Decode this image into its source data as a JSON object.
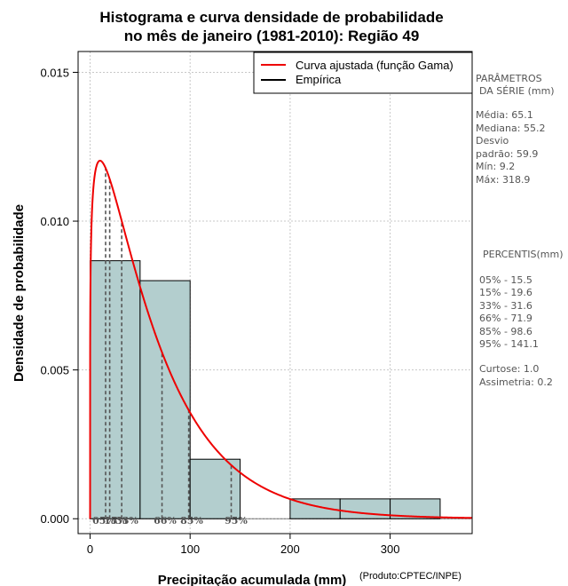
{
  "chart_data": {
    "type": "histogram",
    "title": "Histograma e curva densidade de probabilidade",
    "subtitle": "no mês de janeiro (1981-2010): Região 49",
    "xlabel": "Precipitação acumulada (mm)",
    "ylabel": "Densidade de probabilidade",
    "credit": "(Produto:CPTEC/INPE)",
    "xlim": [
      -12,
      382
    ],
    "ylim": [
      -0.0005,
      0.0157
    ],
    "x_ticks": [
      0,
      100,
      200,
      300
    ],
    "x_tick_labels": [
      "0",
      "100",
      "200",
      "300"
    ],
    "y_ticks": [
      0.0,
      0.005,
      0.01,
      0.015
    ],
    "y_tick_labels": [
      "0.000",
      "0.005",
      "0.010",
      "0.015"
    ],
    "grid": true,
    "bins": [
      {
        "start": 0,
        "end": 50,
        "density": 0.00867
      },
      {
        "start": 50,
        "end": 100,
        "density": 0.008
      },
      {
        "start": 100,
        "end": 150,
        "density": 0.002
      },
      {
        "start": 150,
        "end": 200,
        "density": 0.0
      },
      {
        "start": 200,
        "end": 250,
        "density": 0.000667
      },
      {
        "start": 250,
        "end": 300,
        "density": 0.000667
      },
      {
        "start": 300,
        "end": 350,
        "density": 0.000667
      }
    ],
    "fitted_curve": {
      "name": "Curva ajustada (função Gama)",
      "shape": 1.18,
      "scale": 55.2,
      "color": "#ee0000"
    },
    "legend": [
      {
        "label": "Curva ajustada (função Gama)",
        "color": "#ee0000"
      },
      {
        "label": "Empírica",
        "color": "#000000"
      }
    ],
    "bar_color": "#b3cece",
    "percentile_lines": [
      {
        "label": "05%",
        "x": 15.5
      },
      {
        "label": "15%",
        "x": 19.6
      },
      {
        "label": "33%",
        "x": 31.6
      },
      {
        "label": "66%",
        "x": 71.9
      },
      {
        "label": "85%",
        "x": 98.6
      },
      {
        "label": "95%",
        "x": 141.1
      }
    ],
    "side_panel": {
      "params_title_1": "PARÂMETROS",
      "params_title_2": "DA SÉRIE (mm)",
      "media": "Média:  65.1",
      "mediana": "Mediana:  55.2",
      "desvio_1": "Desvio",
      "desvio_2": "padrão:  59.9",
      "min": "Mín:  9.2",
      "max": "Máx:  318.9",
      "pct_title": "PERCENTIS(mm)",
      "p05": "05% -  15.5",
      "p15": "15% -  19.6",
      "p33": "33% -  31.6",
      "p66": "66% -  71.9",
      "p85": "85% -  98.6",
      "p95": "95% -  141.1",
      "curtose": "Curtose:  1.0",
      "assimetria": "Assimetria:  0.2"
    }
  }
}
